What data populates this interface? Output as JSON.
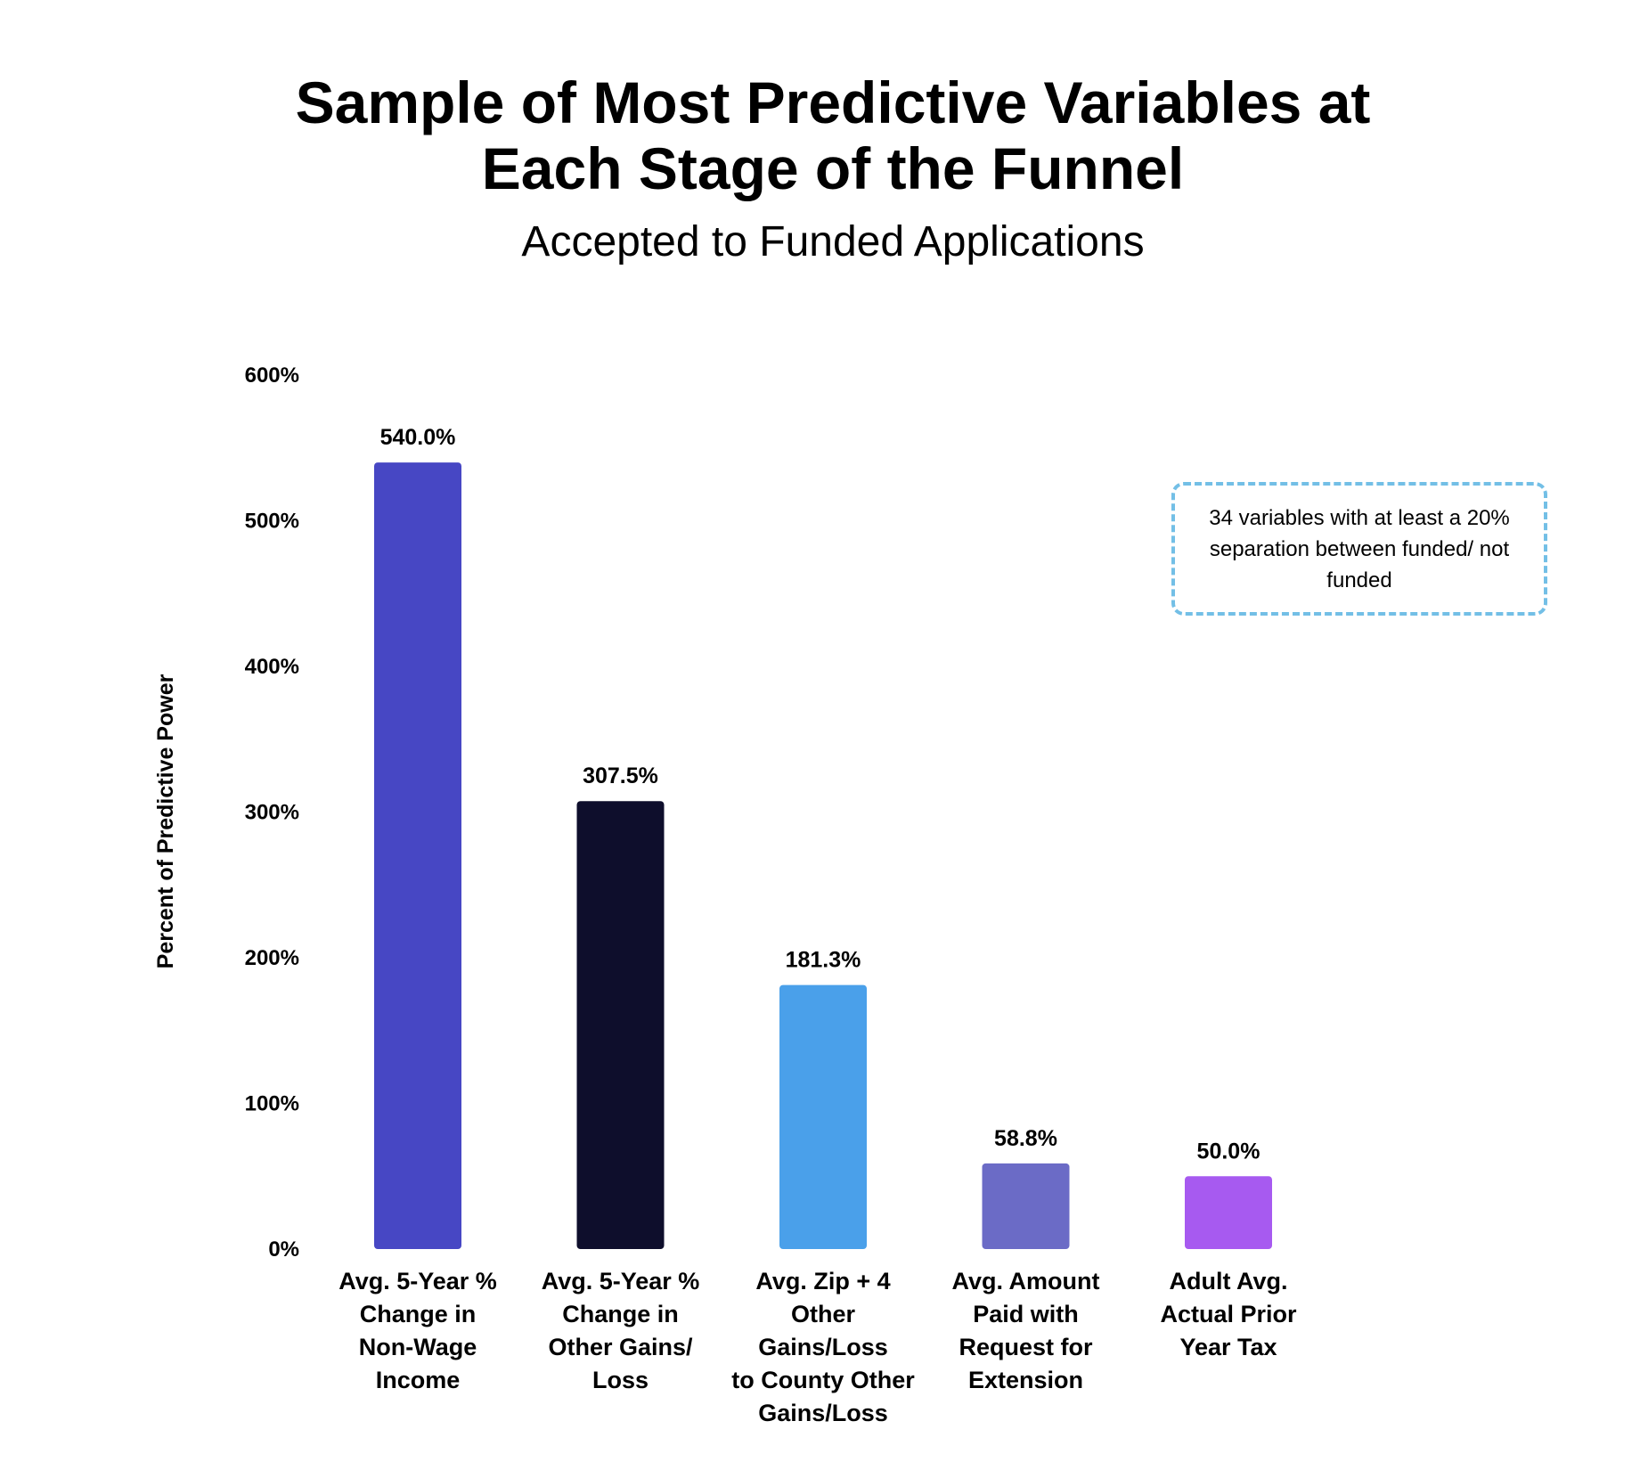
{
  "chart_data": {
    "type": "bar",
    "title": [
      "Sample of Most Predictive Variables at",
      "Each Stage of the Funnel"
    ],
    "subtitle": "Accepted to Funded Applications",
    "xlabel": "",
    "ylabel": "Percent of Predictive Power",
    "ylim": [
      0,
      600
    ],
    "yticks": [
      0,
      100,
      200,
      300,
      400,
      500,
      600
    ],
    "ytick_labels": [
      "0%",
      "100%",
      "200%",
      "300%",
      "400%",
      "500%",
      "600%"
    ],
    "grid": false,
    "categories": [
      "Avg. 5-Year %\nChange in\nNon-Wage\nIncome",
      "Avg. 5-Year %\nChange in\nOther Gains/\nLoss",
      "Avg. Zip + 4\nOther Gains/Loss\nto County Other\nGains/Loss",
      "Avg. Amount\nPaid with\nRequest for\nExtension",
      "Adult Avg.\nActual Prior\nYear Tax"
    ],
    "values": [
      540.0,
      307.5,
      181.3,
      58.8,
      50.0
    ],
    "data_labels": [
      "540.0%",
      "307.5%",
      "181.3%",
      "58.8%",
      "50.0%"
    ],
    "colors": [
      "#4747c4",
      "#0e0e2c",
      "#4aa0ea",
      "#6b6bc6",
      "#a75af0"
    ],
    "annotation": "34 variables with at least a 20% separation between funded/ not funded"
  }
}
